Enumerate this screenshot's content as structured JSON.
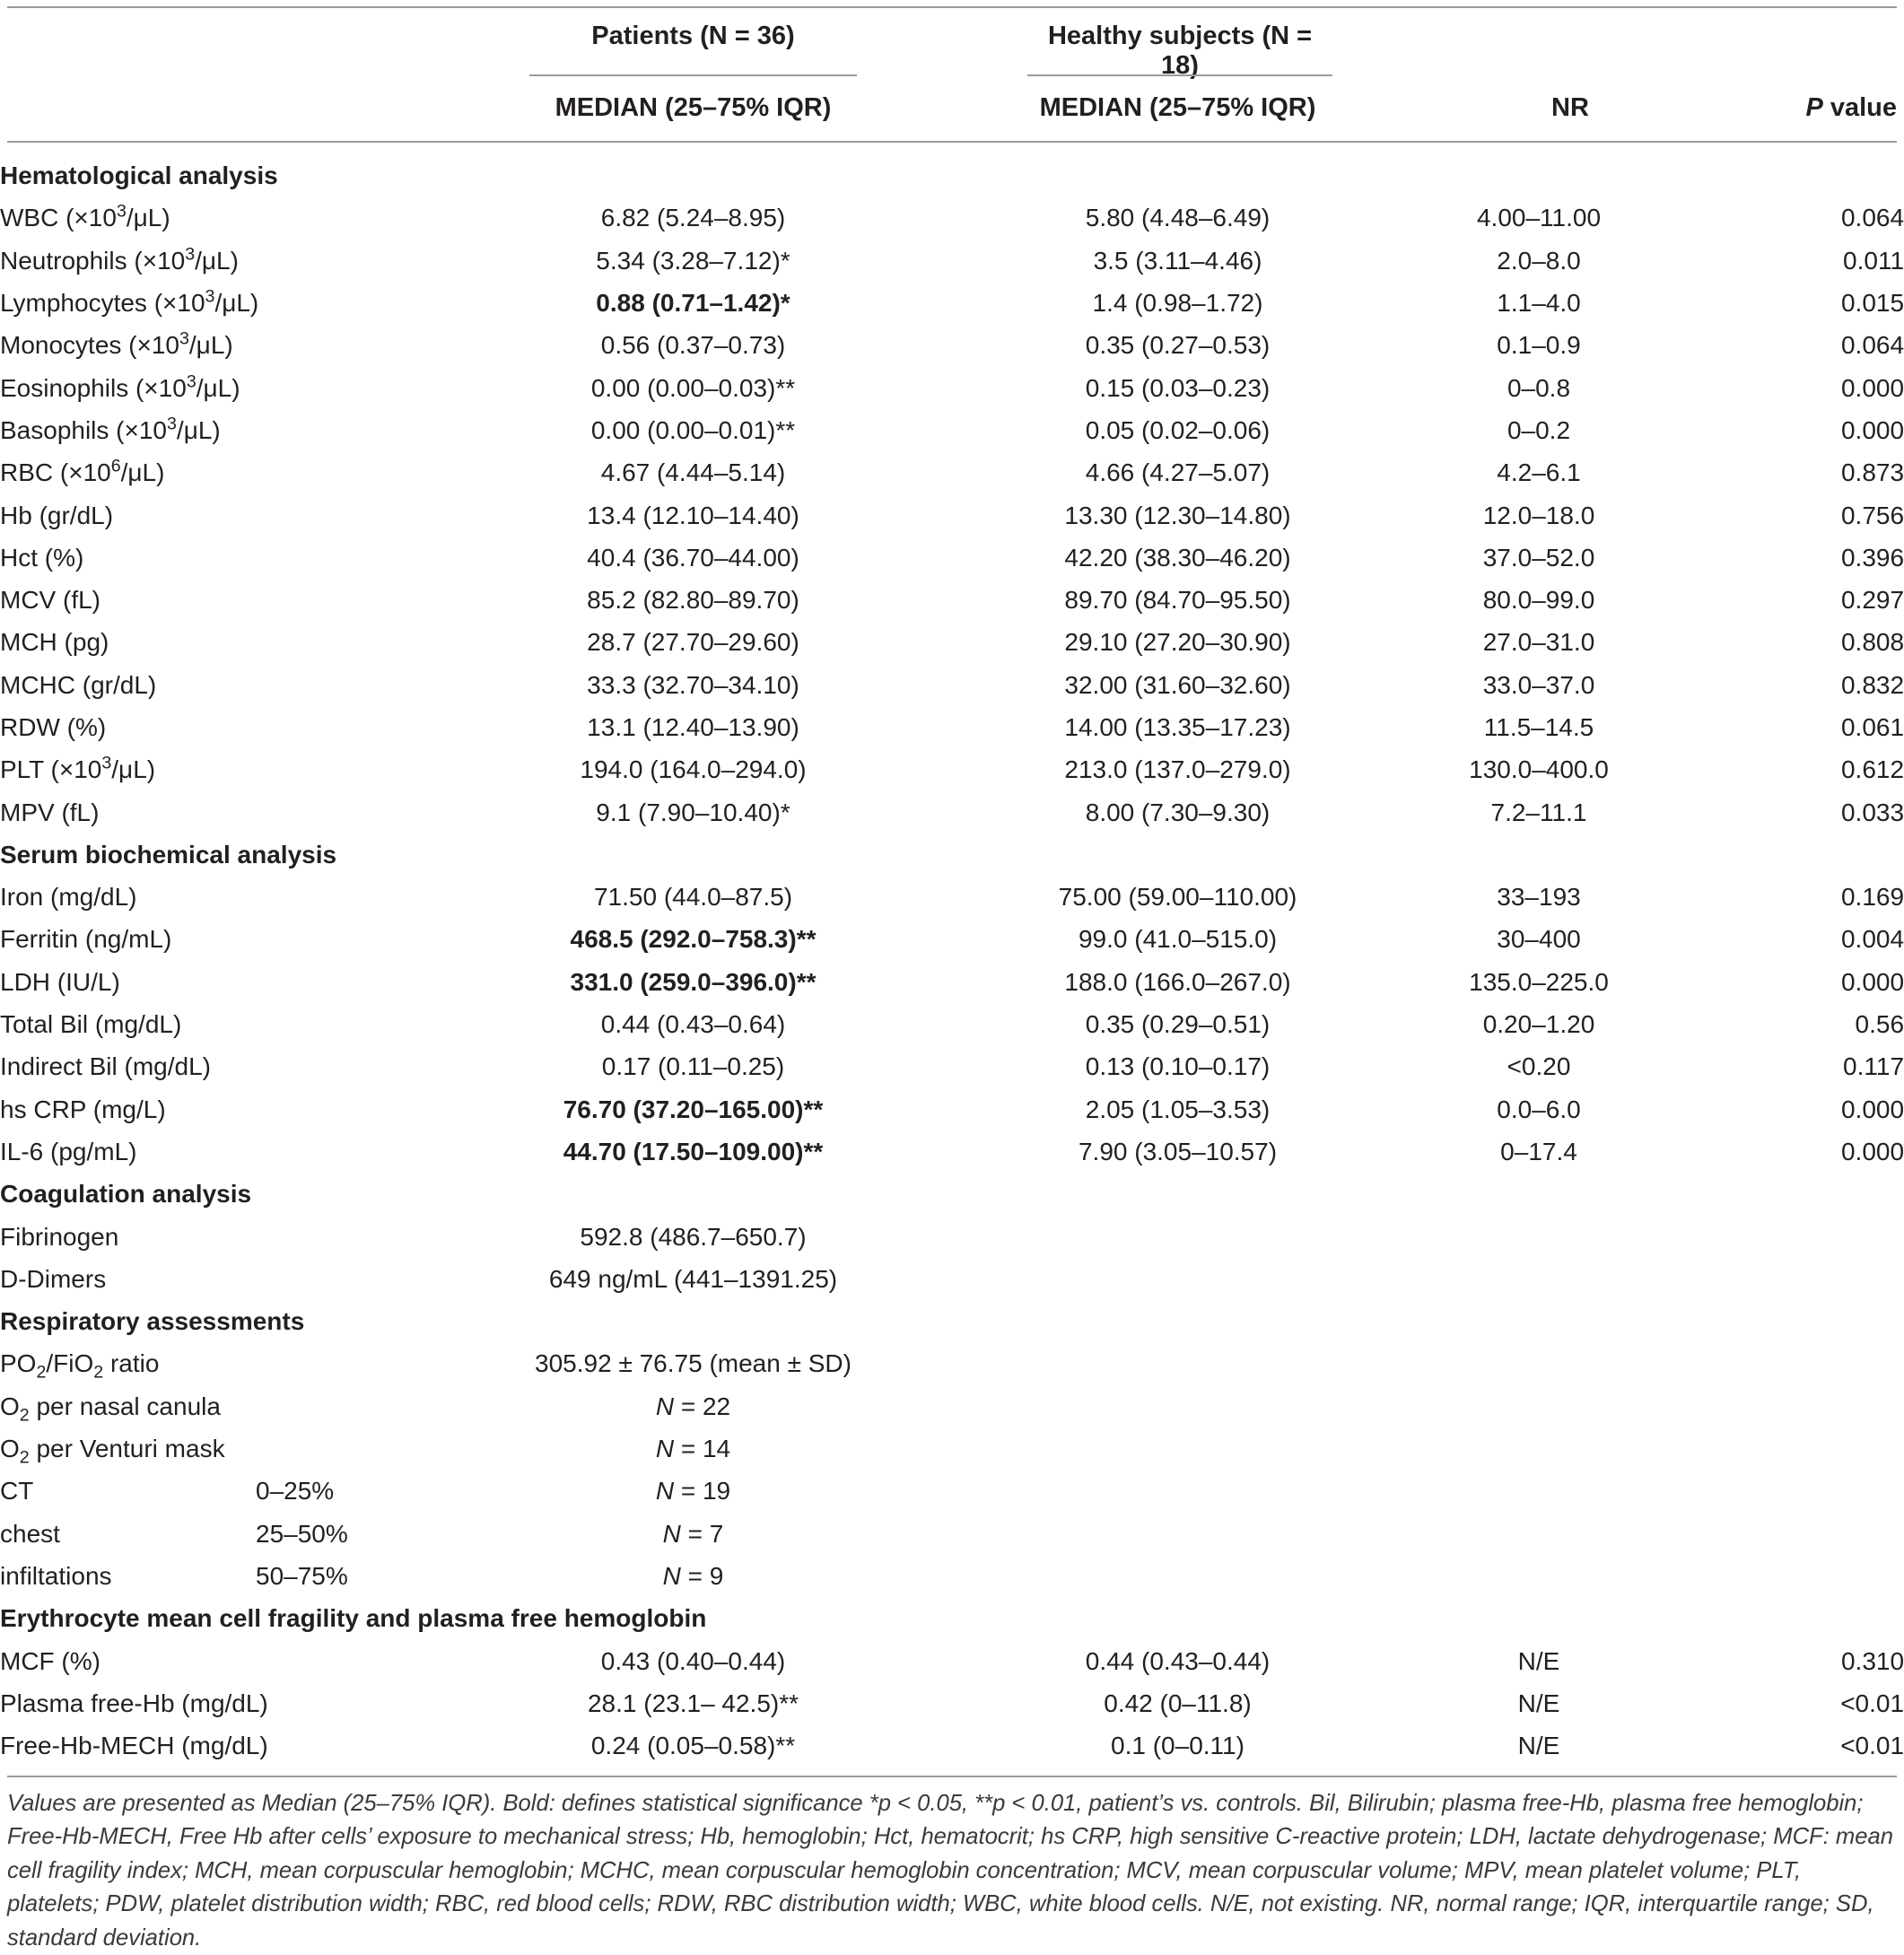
{
  "header": {
    "group_patients": "Patients (N = 36)",
    "group_healthy": "Healthy subjects (N = 18)",
    "col_median_patients": "MEDIAN (25–75% IQR)",
    "col_median_healthy": "MEDIAN (25–75% IQR)",
    "col_nr": "NR",
    "col_p_italic": "P",
    "col_p_rest": " value"
  },
  "rows": [
    {
      "type": "section",
      "label": "Hematological analysis"
    },
    {
      "label": "WBC (×10",
      "sup": "3",
      "label_after": "/μL)",
      "patients": "6.82 (5.24–8.95)",
      "healthy": "5.80 (4.48–6.49)",
      "nr": "4.00–11.00",
      "p": "0.064"
    },
    {
      "label": "Neutrophils (×10",
      "sup": "3",
      "label_after": "/μL)",
      "patients": "5.34 (3.28–7.12)*",
      "healthy": "3.5 (3.11–4.46)",
      "nr": "2.0–8.0",
      "p": "0.011"
    },
    {
      "label": "Lymphocytes (×10",
      "sup": "3",
      "label_after": "/μL)",
      "patients": "0.88 (0.71–1.42)*",
      "bold": true,
      "healthy": "1.4 (0.98–1.72)",
      "nr": "1.1–4.0",
      "p": "0.015"
    },
    {
      "label": "Monocytes (×10",
      "sup": "3",
      "label_after": "/μL)",
      "patients": "0.56 (0.37–0.73)",
      "healthy": "0.35 (0.27–0.53)",
      "nr": "0.1–0.9",
      "p": "0.064"
    },
    {
      "label": "Eosinophils (×10",
      "sup": "3",
      "label_after": "/μL)",
      "patients": "0.00 (0.00–0.03)**",
      "healthy": "0.15 (0.03–0.23)",
      "nr": "0–0.8",
      "p": "0.000"
    },
    {
      "label": "Basophils (×10",
      "sup": "3",
      "label_after": "/μL)",
      "patients": "0.00 (0.00–0.01)**",
      "healthy": "0.05 (0.02–0.06)",
      "nr": "0–0.2",
      "p": "0.000"
    },
    {
      "label": "RBC (×10",
      "sup": "6",
      "label_after": "/μL)",
      "patients": "4.67 (4.44–5.14)",
      "healthy": "4.66 (4.27–5.07)",
      "nr": "4.2–6.1",
      "p": "0.873"
    },
    {
      "label": "Hb (gr/dL)",
      "patients": "13.4 (12.10–14.40)",
      "healthy": "13.30 (12.30–14.80)",
      "nr": "12.0–18.0",
      "p": "0.756"
    },
    {
      "label": "Hct (%)",
      "patients": "40.4 (36.70–44.00)",
      "healthy": "42.20 (38.30–46.20)",
      "nr": "37.0–52.0",
      "p": "0.396"
    },
    {
      "label": "MCV (fL)",
      "patients": "85.2 (82.80–89.70)",
      "healthy": "89.70 (84.70–95.50)",
      "nr": "80.0–99.0",
      "p": "0.297"
    },
    {
      "label": "MCH (pg)",
      "patients": "28.7 (27.70–29.60)",
      "healthy": "29.10 (27.20–30.90)",
      "nr": "27.0–31.0",
      "p": "0.808"
    },
    {
      "label": "MCHC (gr/dL)",
      "patients": "33.3 (32.70–34.10)",
      "healthy": "32.00 (31.60–32.60)",
      "nr": "33.0–37.0",
      "p": "0.832"
    },
    {
      "label": "RDW (%)",
      "patients": "13.1 (12.40–13.90)",
      "healthy": "14.00 (13.35–17.23)",
      "nr": "11.5–14.5",
      "p": "0.061"
    },
    {
      "label": "PLT (×10",
      "sup": "3",
      "label_after": "/μL)",
      "patients": "194.0 (164.0–294.0)",
      "healthy": "213.0 (137.0–279.0)",
      "nr": "130.0–400.0",
      "p": "0.612"
    },
    {
      "label": "MPV (fL)",
      "patients": "9.1 (7.90–10.40)*",
      "healthy": "8.00 (7.30–9.30)",
      "nr": "7.2–11.1",
      "p": "0.033"
    },
    {
      "type": "section",
      "label": "Serum biochemical analysis"
    },
    {
      "label": "Iron (mg/dL)",
      "patients": "71.50 (44.0–87.5)",
      "healthy": "75.00 (59.00–110.00)",
      "nr": "33–193",
      "p": "0.169"
    },
    {
      "label": "Ferritin (ng/mL)",
      "patients": "468.5 (292.0–758.3)**",
      "bold": true,
      "healthy": "99.0 (41.0–515.0)",
      "nr": "30–400",
      "p": "0.004"
    },
    {
      "label": "LDH (IU/L)",
      "patients": "331.0 (259.0–396.0)**",
      "bold": true,
      "healthy": "188.0 (166.0–267.0)",
      "nr": "135.0–225.0",
      "p": "0.000"
    },
    {
      "label": "Total Bil (mg/dL)",
      "patients": "0.44 (0.43–0.64)",
      "healthy": "0.35 (0.29–0.51)",
      "nr": "0.20–1.20",
      "p": "0.56"
    },
    {
      "label": "Indirect Bil (mg/dL)",
      "patients": "0.17 (0.11–0.25)",
      "healthy": "0.13 (0.10–0.17)",
      "nr": "<0.20",
      "p": "0.117"
    },
    {
      "label": "hs CRP (mg/L)",
      "patients": "76.70 (37.20–165.00)**",
      "bold": true,
      "healthy": "2.05 (1.05–3.53)",
      "nr": "0.0–6.0",
      "p": "0.000"
    },
    {
      "label": "IL-6 (pg/mL)",
      "patients": "44.70 (17.50–109.00)**",
      "bold": true,
      "healthy": "7.90 (3.05–10.57)",
      "nr": "0–17.4",
      "p": "0.000"
    },
    {
      "type": "section",
      "label": "Coagulation analysis"
    },
    {
      "label": "Fibrinogen",
      "patients": "592.8 (486.7–650.7)"
    },
    {
      "label": "D-Dimers",
      "patients": "649 ng/mL (441–1391.25)"
    },
    {
      "type": "section",
      "label": "Respiratory assessments"
    },
    {
      "label": "PO",
      "sub1": "2",
      "label_mid": "/FiO",
      "sub2": "2",
      "label_after": " ratio",
      "patients": "305.92 ± 76.75 (mean ± SD)"
    },
    {
      "label": "O",
      "sub1": "2",
      "label_after": " per nasal canula",
      "patients_italic": "N",
      "patients": " = 22"
    },
    {
      "label": "O",
      "sub1": "2",
      "label_after": " per Venturi mask",
      "patients_italic": "N",
      "patients": " = 14"
    },
    {
      "label": "CT",
      "sublabel": "0–25%",
      "patients_italic": "N",
      "patients": " = 19"
    },
    {
      "label": "chest",
      "sublabel": "25–50%",
      "patients_italic": "N",
      "patients": " = 7"
    },
    {
      "label": "infiltations",
      "sublabel": "50–75%",
      "patients_italic": "N",
      "patients": " = 9"
    },
    {
      "type": "section",
      "label": "Erythrocyte mean cell fragility and plasma free hemoglobin"
    },
    {
      "label": "MCF (%)",
      "patients": "0.43 (0.40–0.44)",
      "healthy": "0.44 (0.43–0.44)",
      "nr": "N/E",
      "p": "0.310"
    },
    {
      "label": "Plasma free-Hb (mg/dL)",
      "patients": "28.1 (23.1– 42.5)**",
      "healthy": "0.42 (0–11.8)",
      "nr": "N/E",
      "p": "<0.01"
    },
    {
      "label": "Free-Hb-MECH (mg/dL)",
      "patients": "0.24 (0.05–0.58)**",
      "healthy": "0.1 (0–0.11)",
      "nr": "N/E",
      "p": "<0.01"
    }
  ],
  "footnote": "Values are presented as Median (25–75% IQR). Bold: defines statistical significance *p < 0.05, **p < 0.01, patient’s vs. controls. Bil, Bilirubin; plasma free-Hb, plasma free hemoglobin; Free-Hb-MECH, Free Hb after cells’ exposure to mechanical stress; Hb, hemoglobin; Hct, hematocrit; hs CRP, high sensitive C-reactive protein; LDH, lactate dehydrogenase; MCF: mean cell fragility index; MCH, mean corpuscular hemoglobin; MCHC, mean corpuscular hemoglobin concentration; MCV, mean corpuscular volume; MPV, mean platelet volume; PLT, platelets; PDW, platelet distribution width; RBC, red blood cells; RDW, RBC distribution width; WBC, white blood cells. N/E, not existing. NR, normal range; IQR, interquartile range; SD, standard deviation."
}
